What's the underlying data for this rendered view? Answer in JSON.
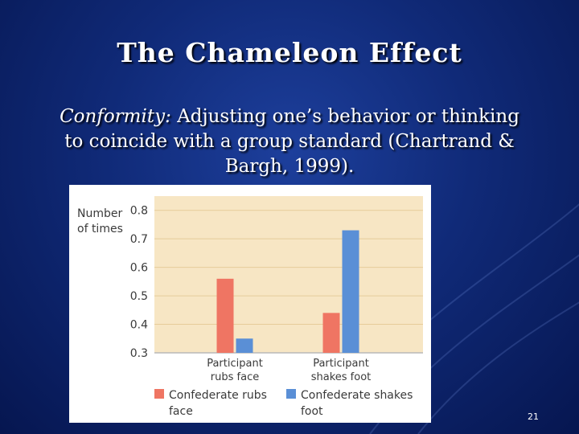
{
  "slide": {
    "title": "The Chameleon Effect",
    "term": "Conformity:",
    "definition": " Adjusting one’s behavior or thinking to coincide with a group standard (Chartrand & Bargh, 1999).",
    "slide_number": "21"
  },
  "colors": {
    "plot_bg": "#f7e6c4",
    "gridline": "#e6cc9a",
    "rubs_face": "#ef7563",
    "shakes_foot": "#5a8fd6"
  },
  "chart_data": {
    "type": "bar",
    "ylabel_lines": [
      "Number",
      "of times"
    ],
    "xlabel": "",
    "ylim": [
      0.3,
      0.85
    ],
    "yticks": [
      "0.3",
      "0.4",
      "0.5",
      "0.6",
      "0.7",
      "0.8"
    ],
    "grid": true,
    "categories": [
      {
        "lines": [
          "Participant",
          "rubs face"
        ]
      },
      {
        "lines": [
          "Participant",
          "shakes foot"
        ]
      }
    ],
    "series": [
      {
        "name_lines": [
          "Confederate rubs",
          "face"
        ],
        "color": "#ef7563",
        "values": [
          0.56,
          0.44
        ]
      },
      {
        "name_lines": [
          "Confederate shakes",
          "foot"
        ],
        "color": "#5a8fd6",
        "values": [
          0.35,
          0.73
        ]
      }
    ],
    "legend_position": "bottom"
  }
}
